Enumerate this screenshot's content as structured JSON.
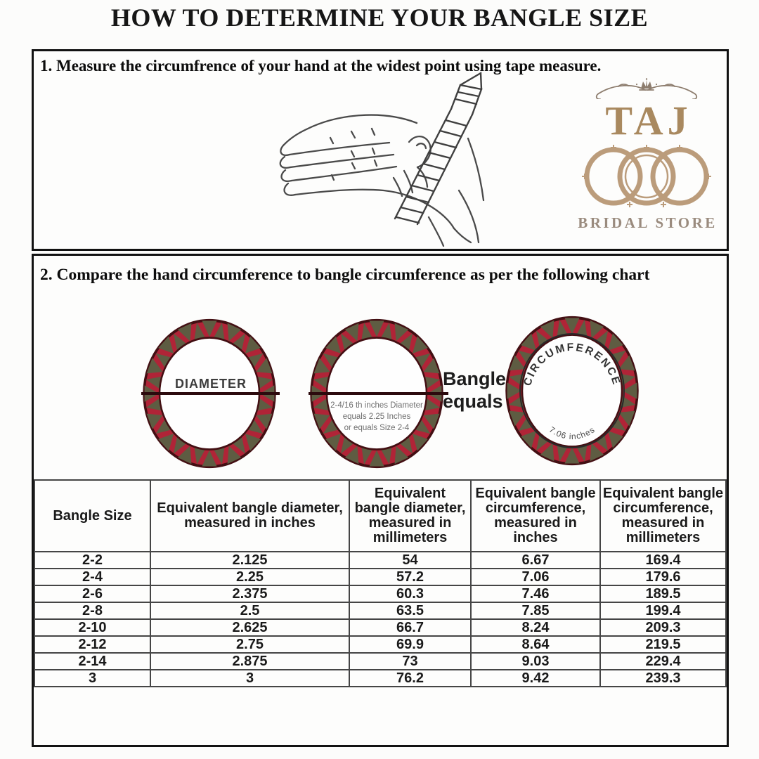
{
  "title": "HOW TO DETERMINE YOUR BANGLE SIZE",
  "steps": {
    "step1": "1. Measure the circumfrence of your hand at the widest point using tape measure.",
    "step2": "2. Compare the hand circumference to bangle circumference as per the following chart"
  },
  "logo": {
    "brand": "TAJ",
    "subtitle": "BRIDAL STORE",
    "brand_color": "#a9895f",
    "rings_color": "#bb9c7b",
    "subtitle_color": "#9a8b7e"
  },
  "diagram": {
    "diameter_label": "DIAMETER",
    "note_lines": [
      "2-4/16 th inches Diameter",
      "equals 2.25 Inches",
      "or equals Size 2-4"
    ],
    "equals_lines": [
      "Bangle",
      "equals"
    ],
    "circumference_label": "CIRCUMFERENCE",
    "circumference_value": "7.06 inches",
    "colors": {
      "band_red": "#b02437",
      "band_olive": "#5e5c42",
      "band_outline": "#430f13",
      "band_inner": "#fefefe"
    }
  },
  "chart_data": {
    "type": "table",
    "headers": [
      "Bangle Size",
      "Equivalent bangle diameter, measured in inches",
      "Equivalent bangle diameter, measured in millimeters",
      "Equivalent bangle circumference, measured in inches",
      "Equivalent bangle circumference, measured in millimeters"
    ],
    "rows": [
      [
        "2-2",
        "2.125",
        "54",
        "6.67",
        "169.4"
      ],
      [
        "2-4",
        "2.25",
        "57.2",
        "7.06",
        "179.6"
      ],
      [
        "2-6",
        "2.375",
        "60.3",
        "7.46",
        "189.5"
      ],
      [
        "2-8",
        "2.5",
        "63.5",
        "7.85",
        "199.4"
      ],
      [
        "2-10",
        "2.625",
        "66.7",
        "8.24",
        "209.3"
      ],
      [
        "2-12",
        "2.75",
        "69.9",
        "8.64",
        "219.5"
      ],
      [
        "2-14",
        "2.875",
        "73",
        "9.03",
        "229.4"
      ],
      [
        "3",
        "3",
        "76.2",
        "9.42",
        "239.3"
      ]
    ]
  }
}
